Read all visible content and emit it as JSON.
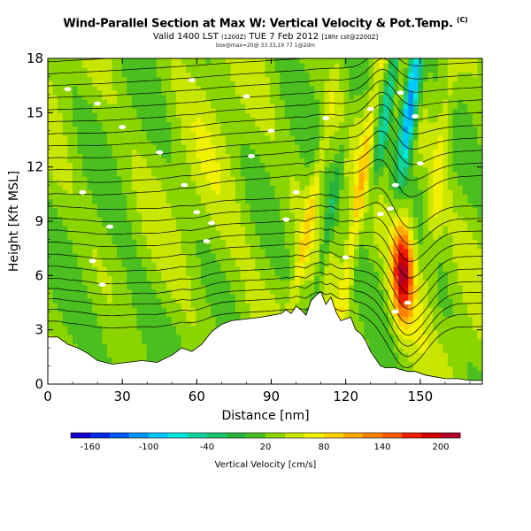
{
  "title": {
    "main": "Wind-Parallel Section at Max W: Vertical Velocity & Pot.Temp.",
    "mark": "(C)",
    "valid_prefix": "Valid 1400 LST",
    "valid_small1": "(1200Z)",
    "valid_mid": "TUE 7 Feb 2012",
    "valid_small2": "[18hr cst@2200Z]",
    "subline": "box@max=20@ 33 33,19 77 1@2dm"
  },
  "chart_data": {
    "type": "heatmap",
    "xlabel": "Distance [nm]",
    "ylabel": "Height [Kft MSL]",
    "xlim": [
      0,
      175
    ],
    "ylim": [
      0,
      18
    ],
    "xticks": [
      "0",
      "30",
      "60",
      "90",
      "120",
      "150"
    ],
    "xtick_values": [
      0,
      30,
      60,
      90,
      120,
      150
    ],
    "yticks": [
      "0",
      "3",
      "6",
      "9",
      "12",
      "15",
      "18"
    ],
    "ytick_values": [
      0,
      3,
      6,
      9,
      12,
      15,
      18
    ],
    "colorbar": {
      "label": "Vertical Velocity [cm/s]",
      "ticks": [
        "-160",
        "-100",
        "-40",
        "20",
        "80",
        "140",
        "200"
      ],
      "tick_values": [
        -160,
        -100,
        -40,
        20,
        80,
        140,
        200
      ],
      "range": [
        -180,
        220
      ],
      "colors": [
        "#1400c8",
        "#0028e6",
        "#005aff",
        "#0096ff",
        "#00c8ff",
        "#00e6dc",
        "#14d2a0",
        "#1ec36e",
        "#28b43c",
        "#4cbf20",
        "#8ad400",
        "#c8e600",
        "#f0f000",
        "#ffd200",
        "#ffaa00",
        "#ff8200",
        "#ff5a00",
        "#f01e00",
        "#d20000",
        "#b40028"
      ]
    },
    "terrain_kft": [
      [
        0,
        2.6
      ],
      [
        4,
        2.6
      ],
      [
        8,
        2.2
      ],
      [
        12,
        2.0
      ],
      [
        16,
        1.7
      ],
      [
        20,
        1.3
      ],
      [
        26,
        1.1
      ],
      [
        32,
        1.2
      ],
      [
        38,
        1.3
      ],
      [
        44,
        1.2
      ],
      [
        50,
        1.6
      ],
      [
        54,
        2.0
      ],
      [
        58,
        1.8
      ],
      [
        62,
        2.2
      ],
      [
        66,
        2.9
      ],
      [
        70,
        3.3
      ],
      [
        74,
        3.5
      ],
      [
        80,
        3.6
      ],
      [
        86,
        3.7
      ],
      [
        90,
        3.8
      ],
      [
        94,
        3.9
      ],
      [
        96,
        4.1
      ],
      [
        98,
        3.9
      ],
      [
        100,
        4.3
      ],
      [
        102,
        4.1
      ],
      [
        104,
        3.8
      ],
      [
        106,
        4.6
      ],
      [
        108,
        4.9
      ],
      [
        110,
        5.1
      ],
      [
        112,
        4.4
      ],
      [
        114,
        4.8
      ],
      [
        116,
        4.0
      ],
      [
        118,
        3.5
      ],
      [
        120,
        3.6
      ],
      [
        122,
        3.7
      ],
      [
        124,
        3.0
      ],
      [
        126,
        2.8
      ],
      [
        128,
        2.4
      ],
      [
        130,
        1.8
      ],
      [
        132,
        1.4
      ],
      [
        134,
        1.0
      ],
      [
        136,
        0.9
      ],
      [
        138,
        0.9
      ],
      [
        140,
        0.9
      ],
      [
        142,
        0.8
      ],
      [
        145,
        0.7
      ],
      [
        148,
        0.7
      ],
      [
        152,
        0.5
      ],
      [
        156,
        0.4
      ],
      [
        160,
        0.3
      ],
      [
        165,
        0.3
      ],
      [
        170,
        0.2
      ],
      [
        175,
        0.2
      ]
    ],
    "velocity_features": [
      {
        "name": "background",
        "value": 30
      },
      {
        "name": "lee-wave-updraft-core",
        "x": 143,
        "y": 6.2,
        "value": 210
      },
      {
        "name": "downdraft-upper",
        "x": 146,
        "y": 15.5,
        "value": -140
      },
      {
        "name": "downdraft-band",
        "x": 138,
        "y": 16.5,
        "value": -60
      },
      {
        "name": "updraft-band-1",
        "x": 105,
        "y": 9,
        "value": 80
      },
      {
        "name": "updraft-band-2",
        "x": 125,
        "y": 10,
        "value": 90
      },
      {
        "name": "downdraft-band-2",
        "x": 112,
        "y": 8,
        "value": -20
      },
      {
        "name": "upslope-lift",
        "x": 70,
        "y": 10,
        "value": 50
      },
      {
        "name": "low-level-weak",
        "x": 30,
        "y": 3,
        "value": 10
      }
    ],
    "isentropes_kft": [
      2.7,
      3.4,
      4.0,
      4.6,
      5.2,
      5.9,
      6.6,
      7.3,
      8.0,
      8.7,
      9.4,
      10.1,
      10.8,
      11.5,
      12.2,
      12.9,
      13.6,
      14.3,
      15.0,
      15.7,
      16.4,
      17.1,
      17.8
    ]
  }
}
